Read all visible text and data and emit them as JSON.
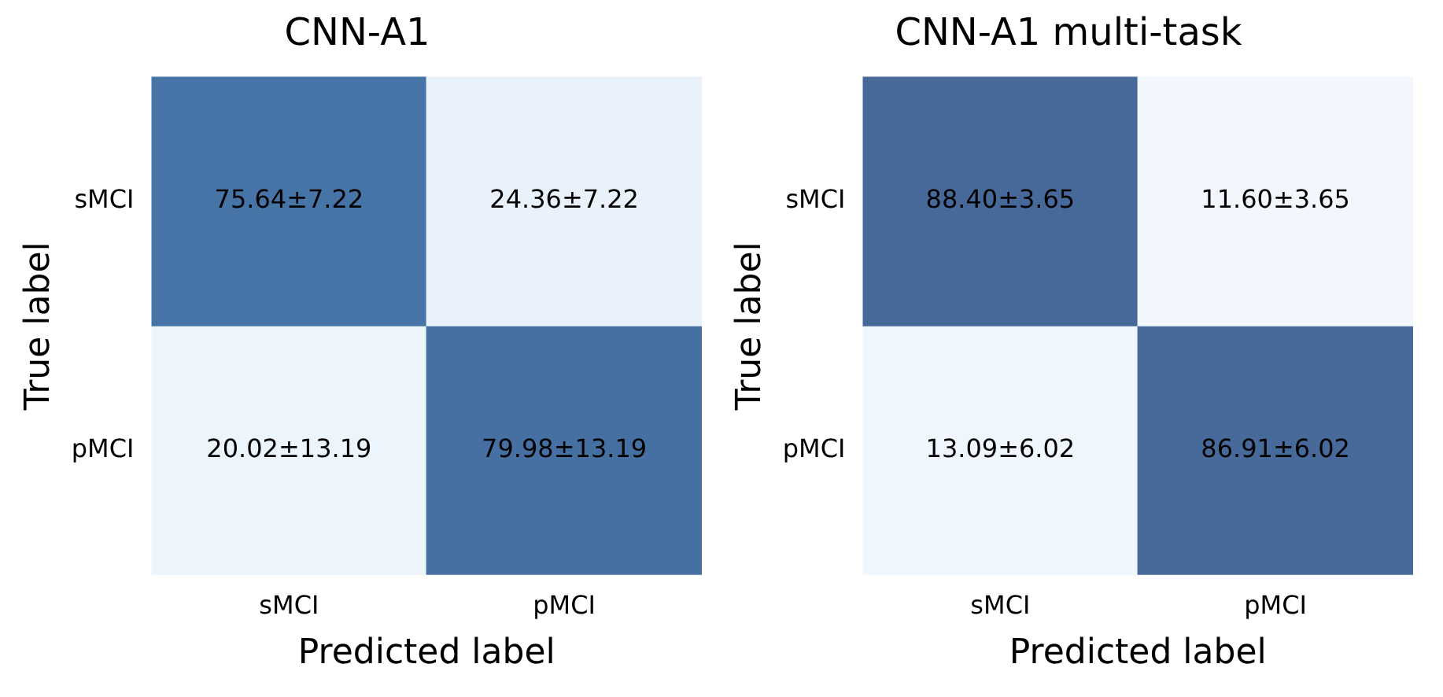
{
  "chart_data": [
    {
      "type": "heatmap",
      "title": "CNN-A1",
      "xlabel": "Predicted label",
      "ylabel": "True label",
      "categories": [
        "sMCI",
        "pMCI"
      ],
      "y_categories": [
        "sMCI",
        "pMCI"
      ],
      "cells": [
        [
          75.64,
          24.36
        ],
        [
          20.02,
          79.98
        ]
      ],
      "data_labels": true,
      "cell_labels": [
        [
          "75.64",
          "24.36"
        ],
        [
          "20.02",
          "79.98"
        ]
      ],
      "annotations": [
        "±7.22",
        "±7.22",
        "±13.19",
        "±13.19"
      ]
    },
    {
      "type": "heatmap",
      "title": "CNN-A1 multi-task",
      "xlabel": "Predicted label",
      "ylabel": "True label",
      "categories": [
        "sMCI",
        "pMCI"
      ],
      "y_categories": [
        "sMCI",
        "pMCI"
      ],
      "cells": [
        [
          88.4,
          11.6
        ],
        [
          13.09,
          86.91
        ]
      ],
      "data_labels": true,
      "cell_labels": [
        [
          "88.40",
          "11.60"
        ],
        [
          "13.09",
          "86.91"
        ]
      ],
      "annotations": [
        "±3.65",
        "±3.65",
        "±6.02",
        "±6.02"
      ]
    }
  ]
}
